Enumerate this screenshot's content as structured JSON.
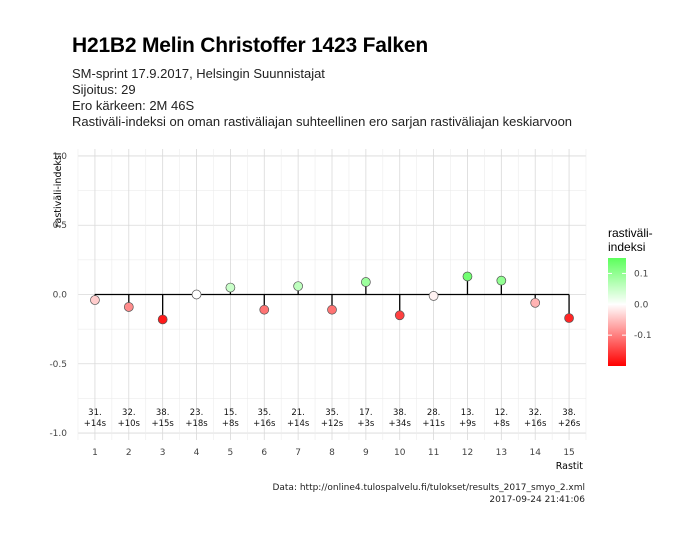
{
  "chart_data": {
    "type": "scatter",
    "title": "H21B2 Melin Christoffer 1423 Falken",
    "subtitle_lines": [
      "SM-sprint 17.9.2017, Helsingin Suunnistajat",
      "Sijoitus: 29",
      "Ero kärkeen: 2M 46S",
      "Rastiväli-indeksi on oman rastiväliajan suhteellinen ero sarjan rastiväliajan keskiarvoon"
    ],
    "xlabel": "Rastit",
    "ylabel": "rastiväli-indeksi",
    "ylim": [
      -1.05,
      1.05
    ],
    "y_ticks": [
      "1.0",
      "0.5",
      "0.0",
      "-0.5",
      "-1.0"
    ],
    "y_tick_values": [
      1.0,
      0.5,
      0.0,
      -0.5,
      -1.0
    ],
    "x": [
      1,
      2,
      3,
      4,
      5,
      6,
      7,
      8,
      9,
      10,
      11,
      12,
      13,
      14,
      15
    ],
    "values": [
      -0.04,
      -0.09,
      -0.18,
      0.0,
      0.05,
      -0.11,
      0.06,
      -0.11,
      0.09,
      -0.15,
      -0.01,
      0.13,
      0.1,
      -0.06,
      -0.17
    ],
    "labels_top": [
      "31.",
      "32.",
      "38.",
      "23.",
      "15.",
      "35.",
      "21.",
      "35.",
      "17.",
      "38.",
      "28.",
      "13.",
      "12.",
      "32.",
      "38."
    ],
    "labels_bottom": [
      "+14s",
      "+10s",
      "+15s",
      "+18s",
      "+8s",
      "+16s",
      "+14s",
      "+12s",
      "+3s",
      "+34s",
      "+11s",
      "+9s",
      "+8s",
      "+16s",
      "+26s"
    ],
    "grid": true,
    "legend": {
      "title_line1": "rastiväli-",
      "title_line2": "indeksi",
      "ticks": [
        "0.1",
        "0.0",
        "-0.1"
      ],
      "tick_values": [
        0.1,
        0.0,
        -0.1
      ],
      "range": [
        -0.2,
        0.15
      ],
      "position": "right"
    },
    "colors": {
      "high": "#5cff5c",
      "mid": "#ffffff",
      "low": "#ff0000"
    }
  },
  "caption": {
    "line1": "Data: http://online4.tulospalvelu.fi/tulokset/results_2017_smyo_2.xml",
    "line2": "2017-09-24 21:41:06"
  }
}
